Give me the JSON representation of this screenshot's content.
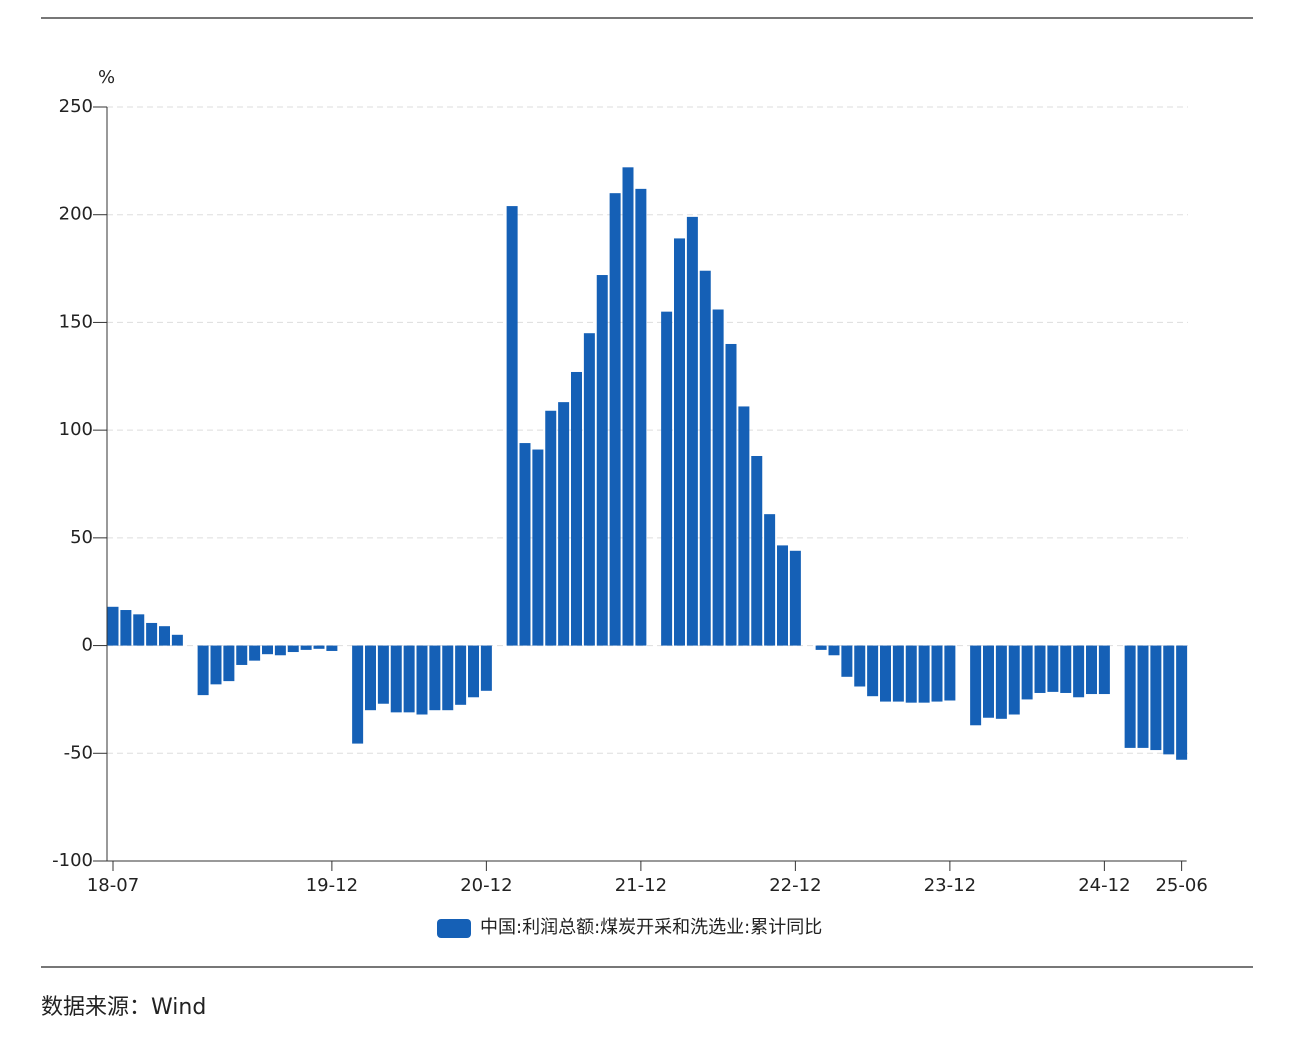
{
  "chart_data": {
    "type": "bar",
    "unit": "%",
    "categories": [
      "18-07",
      null,
      null,
      null,
      null,
      null,
      null,
      null,
      null,
      null,
      null,
      null,
      null,
      null,
      null,
      null,
      null,
      "19-12",
      null,
      null,
      null,
      null,
      null,
      null,
      null,
      null,
      null,
      null,
      null,
      "20-12",
      null,
      null,
      null,
      null,
      null,
      null,
      null,
      null,
      null,
      null,
      null,
      "21-12",
      null,
      null,
      null,
      null,
      null,
      null,
      null,
      null,
      null,
      null,
      null,
      "22-12",
      null,
      null,
      null,
      null,
      null,
      null,
      null,
      null,
      null,
      null,
      null,
      "23-12",
      null,
      null,
      null,
      null,
      null,
      null,
      null,
      null,
      null,
      null,
      null,
      "24-12",
      null,
      null,
      null,
      null,
      null,
      "25-06"
    ],
    "series": [
      {
        "name": "中国:利润总额:煤炭开采和洗选业:累计同比",
        "color": "#1560b6",
        "values": [
          18,
          16.5,
          14.5,
          10.5,
          9,
          5,
          null,
          -23,
          -18,
          -16.5,
          -9,
          -7,
          -4,
          -4.5,
          -3,
          -2,
          -1.5,
          -2.5,
          null,
          -45.5,
          -30,
          -27,
          -31,
          -31,
          -32,
          -30,
          -30,
          -27.5,
          -24,
          -21,
          null,
          204,
          94,
          91,
          109,
          113,
          127,
          145,
          172,
          210,
          222,
          212,
          null,
          155,
          189,
          199,
          174,
          156,
          140,
          111,
          88,
          61,
          46.5,
          44,
          null,
          -2,
          -4.5,
          -14.5,
          -19,
          -23.5,
          -26,
          -26,
          -26.5,
          -26.5,
          -26,
          -25.5,
          null,
          -37,
          -33.5,
          -34,
          -32,
          -25,
          -22,
          -21.5,
          -22,
          -24,
          -22.5,
          -22.5,
          null,
          -47.5,
          -47.5,
          -48.5,
          -50.5,
          -53
        ]
      }
    ],
    "ylim": [
      -100,
      250
    ],
    "yticks": [
      -100,
      -50,
      0,
      50,
      100,
      150,
      200,
      250
    ],
    "grid": true
  },
  "source": "数据来源：Wind"
}
